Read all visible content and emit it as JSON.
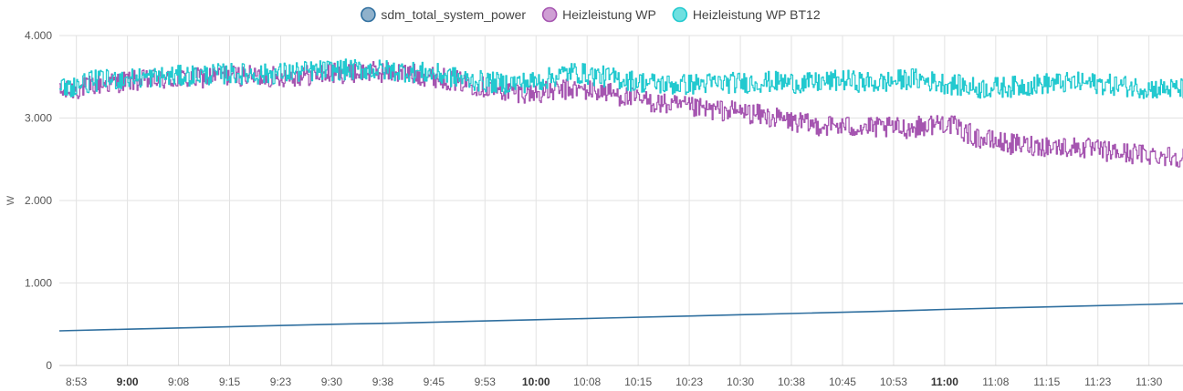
{
  "chart_data": {
    "type": "line",
    "title": "",
    "xlabel": "",
    "ylabel": "W",
    "ylim": [
      0,
      4000
    ],
    "y_ticks": [
      {
        "value": 0,
        "label": "0"
      },
      {
        "value": 1000,
        "label": "1.000"
      },
      {
        "value": 2000,
        "label": "2.000"
      },
      {
        "value": 3000,
        "label": "3.000"
      },
      {
        "value": 4000,
        "label": "4.000"
      }
    ],
    "x_range": [
      "08:50",
      "11:35"
    ],
    "x_ticks": [
      {
        "time": "08:52:30",
        "label": "8:53",
        "bold": false
      },
      {
        "time": "09:00:00",
        "label": "9:00",
        "bold": true
      },
      {
        "time": "09:07:30",
        "label": "9:08",
        "bold": false
      },
      {
        "time": "09:15:00",
        "label": "9:15",
        "bold": false
      },
      {
        "time": "09:22:30",
        "label": "9:23",
        "bold": false
      },
      {
        "time": "09:30:00",
        "label": "9:30",
        "bold": false
      },
      {
        "time": "09:37:30",
        "label": "9:38",
        "bold": false
      },
      {
        "time": "09:45:00",
        "label": "9:45",
        "bold": false
      },
      {
        "time": "09:52:30",
        "label": "9:53",
        "bold": false
      },
      {
        "time": "10:00:00",
        "label": "10:00",
        "bold": true
      },
      {
        "time": "10:07:30",
        "label": "10:08",
        "bold": false
      },
      {
        "time": "10:15:00",
        "label": "10:15",
        "bold": false
      },
      {
        "time": "10:22:30",
        "label": "10:23",
        "bold": false
      },
      {
        "time": "10:30:00",
        "label": "10:30",
        "bold": false
      },
      {
        "time": "10:37:30",
        "label": "10:38",
        "bold": false
      },
      {
        "time": "10:45:00",
        "label": "10:45",
        "bold": false
      },
      {
        "time": "10:52:30",
        "label": "10:53",
        "bold": false
      },
      {
        "time": "11:00:00",
        "label": "11:00",
        "bold": true
      },
      {
        "time": "11:07:30",
        "label": "11:08",
        "bold": false
      },
      {
        "time": "11:15:00",
        "label": "11:15",
        "bold": false
      },
      {
        "time": "11:22:30",
        "label": "11:23",
        "bold": false
      },
      {
        "time": "11:30:00",
        "label": "11:30",
        "bold": false
      }
    ],
    "grid": true,
    "legend_position": "top-center",
    "series": [
      {
        "name": "sdm_total_system_power",
        "color": "#2f6f9f",
        "legend_fill": "#8fb1cb",
        "step": false,
        "x": [
          "08:50",
          "09:00",
          "09:10",
          "09:20",
          "09:30",
          "09:40",
          "09:50",
          "10:00",
          "10:10",
          "10:20",
          "10:30",
          "10:40",
          "10:50",
          "11:00",
          "11:10",
          "11:20",
          "11:30",
          "11:35"
        ],
        "y": [
          420,
          440,
          460,
          480,
          500,
          515,
          535,
          555,
          575,
          595,
          615,
          635,
          655,
          680,
          700,
          720,
          740,
          750
        ]
      },
      {
        "name": "Heizleistung WP",
        "color": "#a555b0",
        "legend_fill": "#cf9fd4",
        "step": true,
        "x": [
          "08:50",
          "08:55",
          "09:00",
          "09:05",
          "09:10",
          "09:15",
          "09:20",
          "09:25",
          "09:30",
          "09:35",
          "09:40",
          "09:45",
          "09:50",
          "09:55",
          "10:00",
          "10:05",
          "10:10",
          "10:15",
          "10:20",
          "10:25",
          "10:30",
          "10:35",
          "10:40",
          "10:45",
          "10:50",
          "10:55",
          "11:00",
          "11:05",
          "11:10",
          "11:15",
          "11:20",
          "11:25",
          "11:30",
          "11:35"
        ],
        "y": [
          3300,
          3400,
          3450,
          3460,
          3480,
          3520,
          3500,
          3510,
          3540,
          3560,
          3550,
          3500,
          3420,
          3330,
          3300,
          3350,
          3320,
          3220,
          3150,
          3100,
          3080,
          3000,
          2920,
          2900,
          2880,
          2880,
          2950,
          2750,
          2680,
          2660,
          2640,
          2580,
          2560,
          2530
        ]
      },
      {
        "name": "Heizleistung WP BT12",
        "color": "#22c9cf",
        "legend_fill": "#6fe0e0",
        "step": true,
        "x": [
          "08:50",
          "08:55",
          "09:00",
          "09:05",
          "09:10",
          "09:15",
          "09:20",
          "09:25",
          "09:30",
          "09:35",
          "09:40",
          "09:45",
          "09:50",
          "09:55",
          "10:00",
          "10:05",
          "10:10",
          "10:15",
          "10:20",
          "10:25",
          "10:30",
          "10:35",
          "10:40",
          "10:45",
          "10:50",
          "10:55",
          "11:00",
          "11:05",
          "11:10",
          "11:15",
          "11:20",
          "11:25",
          "11:30",
          "11:35"
        ],
        "y": [
          3350,
          3450,
          3480,
          3500,
          3520,
          3540,
          3530,
          3560,
          3580,
          3590,
          3570,
          3540,
          3460,
          3420,
          3440,
          3560,
          3500,
          3440,
          3400,
          3420,
          3430,
          3440,
          3420,
          3460,
          3420,
          3480,
          3420,
          3360,
          3380,
          3420,
          3430,
          3400,
          3360,
          3350
        ]
      }
    ]
  }
}
